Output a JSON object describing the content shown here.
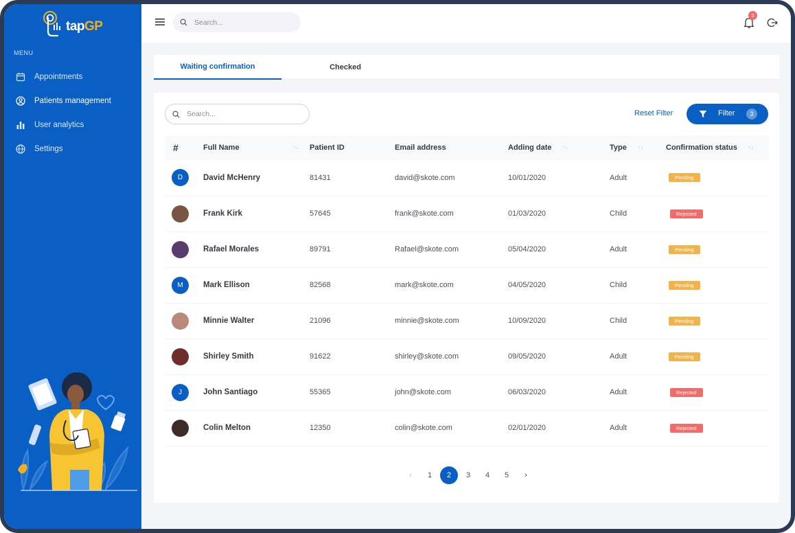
{
  "brand": {
    "name_main": "tap",
    "name_accent": "GP"
  },
  "sidebar": {
    "menu_title": "MENU",
    "items": [
      {
        "label": "Appointments",
        "icon": "calendar-icon"
      },
      {
        "label": "Patients management",
        "icon": "user-circle-icon"
      },
      {
        "label": "User analytics",
        "icon": "bar-chart-icon"
      },
      {
        "label": "Settings",
        "icon": "globe-icon"
      }
    ]
  },
  "topbar": {
    "search_placeholder": "Search...",
    "notification_count": "3"
  },
  "tabs": [
    {
      "label": "Waiting confirmation",
      "active": true
    },
    {
      "label": "Checked",
      "active": false
    }
  ],
  "toolbar": {
    "search_placeholder": "Search...",
    "reset_filter_label": "Reset Filter",
    "filter_label": "Filter",
    "filter_count": "3"
  },
  "table": {
    "columns": [
      "#",
      "Full Name",
      "Patient ID",
      "Email address",
      "Adding date",
      "Type",
      "Confirmation status"
    ],
    "rows": [
      {
        "avatar": "D",
        "name": "David McHenry",
        "id": "81431",
        "email": "david@skote.com",
        "date": "10/01/2020",
        "type": "Adult",
        "status": "Pending"
      },
      {
        "avatar": "",
        "name": "Frank Kirk",
        "id": "57645",
        "email": "frank@skote.com",
        "date": "01/03/2020",
        "type": "Child",
        "status": "Rejected"
      },
      {
        "avatar": "",
        "name": "Rafael Morales",
        "id": "89791",
        "email": "Rafael@skote.com",
        "date": "05/04/2020",
        "type": "Adult",
        "status": "Pending"
      },
      {
        "avatar": "M",
        "name": "Mark Ellison",
        "id": "82568",
        "email": "mark@skote.com",
        "date": "04/05/2020",
        "type": "Child",
        "status": "Pending"
      },
      {
        "avatar": "",
        "name": "Minnie Walter",
        "id": "21096",
        "email": "minnie@skote.com",
        "date": "10/09/2020",
        "type": "Child",
        "status": "Pending"
      },
      {
        "avatar": "",
        "name": "Shirley Smith",
        "id": "91622",
        "email": "shirley@skote.com",
        "date": "09/05/2020",
        "type": "Adult",
        "status": "Pending"
      },
      {
        "avatar": "J",
        "name": "John Santiago",
        "id": "55365",
        "email": "john@skote.com",
        "date": "06/03/2020",
        "type": "Adult",
        "status": "Rejected"
      },
      {
        "avatar": "",
        "name": "Colin Melton",
        "id": "12350",
        "email": "colin@skote.com",
        "date": "02/01/2020",
        "type": "Adult",
        "status": "Rejected"
      }
    ]
  },
  "pagination": {
    "prev": "‹",
    "next": "›",
    "pages": [
      "1",
      "2",
      "3",
      "4",
      "5"
    ],
    "current": "2"
  },
  "colors": {
    "primary": "#0a5fc4",
    "pending": "#f1b44c",
    "rejected": "#f46a6a",
    "accent": "#f2b01e"
  }
}
